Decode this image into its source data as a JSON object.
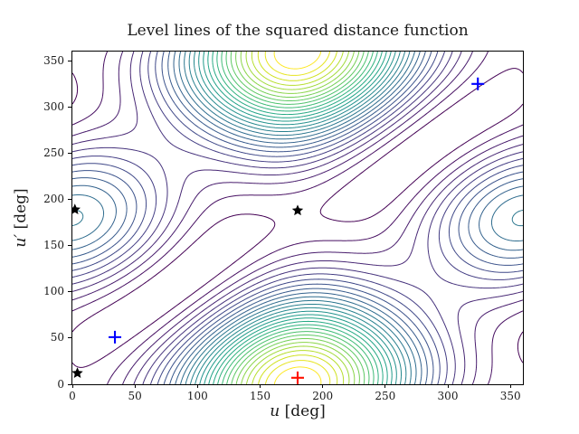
{
  "title": "Level lines of the squared distance function",
  "chart_data": {
    "type": "contour",
    "title": "Level lines of the squared distance function",
    "xlabel": {
      "text": "u [deg]",
      "var": "u",
      "unit": " [deg]"
    },
    "ylabel": {
      "text": "u′ [deg]",
      "var": "u′",
      "unit": " [deg]"
    },
    "xlim": [
      0,
      360
    ],
    "ylim": [
      0,
      360
    ],
    "x_ticks": [
      0,
      50,
      100,
      150,
      200,
      250,
      300,
      350
    ],
    "y_ticks": [
      0,
      50,
      100,
      150,
      200,
      250,
      300,
      350
    ],
    "grid": false,
    "legend": "none",
    "colormap": "viridis",
    "levels": {
      "start": 0.7,
      "step": 0.8,
      "count": 29
    },
    "surface_model": {
      "note": "reconstructed field: squared distance between point p(u)=(a1 cos u, b1 sin u) and point q(u') on an x-shifted ellipse q=(dx + a2 cos u', b2 sin u'); minimum band along u=u', maxima near (180,0) and (180,360)",
      "a1": 2.0,
      "b1": 1.0,
      "a2": 2.0,
      "b2": 1.0,
      "dx": 0.9,
      "min_on_diagonal": 0,
      "max_value": 24.0,
      "max_at": [
        [
          180,
          0
        ],
        [
          180,
          360
        ]
      ]
    },
    "markers": [
      {
        "type": "star",
        "color": "#000000",
        "u": 2,
        "u_prime": 189
      },
      {
        "type": "star",
        "color": "#000000",
        "u": 180,
        "u_prime": 188
      },
      {
        "type": "star",
        "color": "#000000",
        "u": 4,
        "u_prime": 12
      },
      {
        "type": "plus",
        "color": "#0000ff",
        "u": 34,
        "u_prime": 51
      },
      {
        "type": "plus",
        "color": "#0000ff",
        "u": 324,
        "u_prime": 325
      },
      {
        "type": "plus",
        "color": "#ff1100",
        "u": 180,
        "u_prime": 7
      }
    ]
  },
  "colors": {
    "spine": "#000000",
    "text": "#1a1a1a",
    "background": "#ffffff",
    "viridis_low": "#440154",
    "viridis_high": "#fde725",
    "marker_star": "#000000",
    "marker_plus_blue": "#0000ff",
    "marker_plus_red": "#ff1100"
  }
}
